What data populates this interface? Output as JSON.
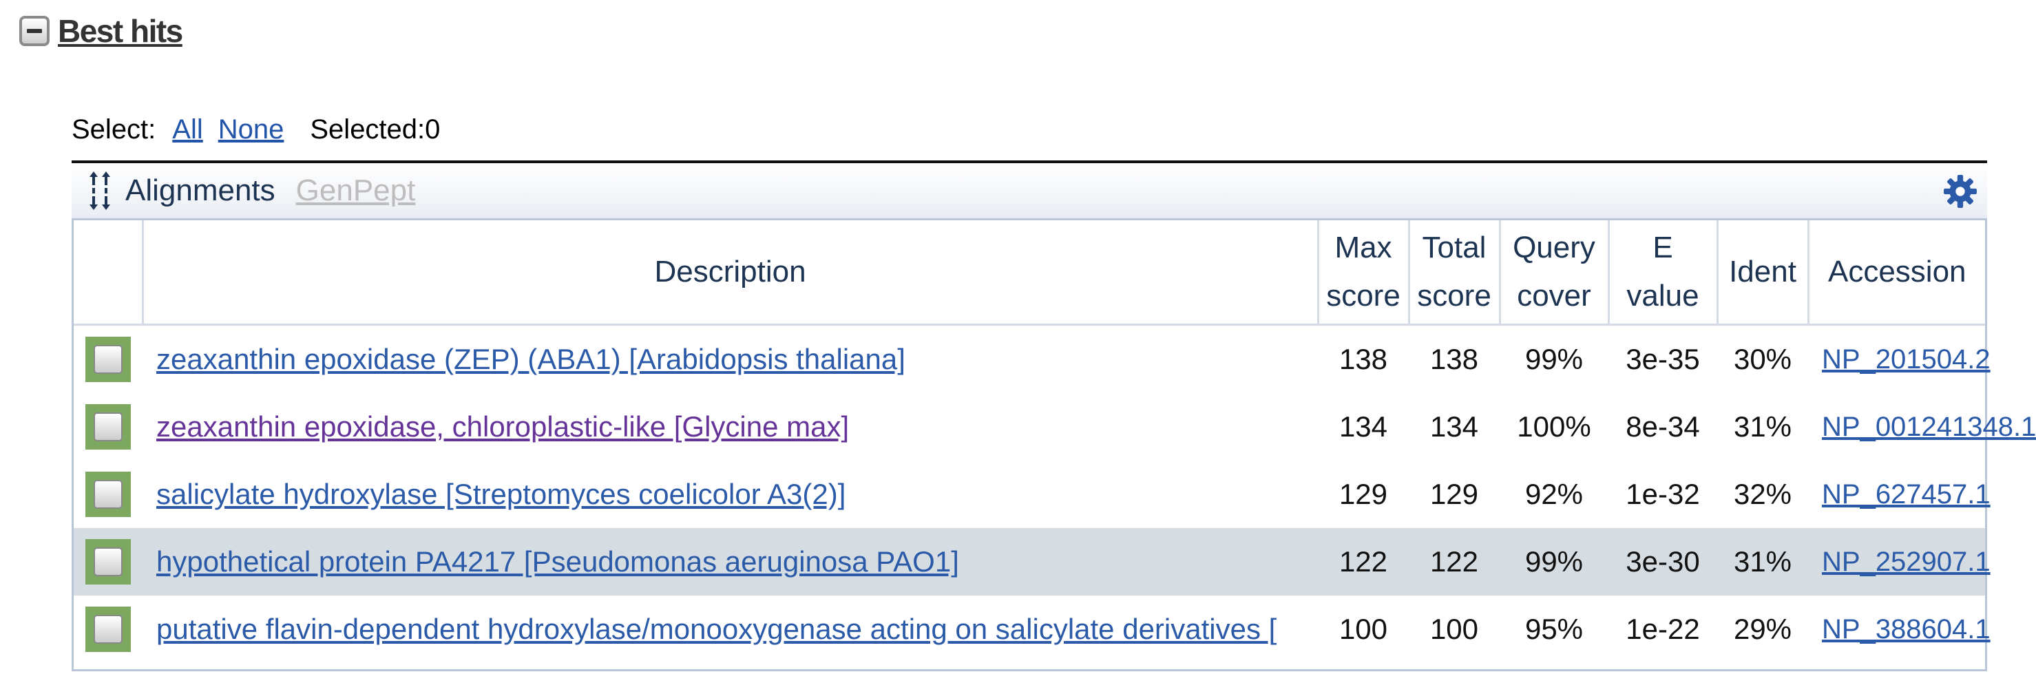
{
  "section": {
    "title": "Best hits",
    "toggle_icon": "collapse-minus-icon"
  },
  "select": {
    "label": "Select:",
    "all": "All",
    "none": "None",
    "selected_label": "Selected:0"
  },
  "toolbar": {
    "alignments": "Alignments",
    "genpept": "GenPept",
    "alignments_icon": "alignment-arrows-icon",
    "settings_icon": "gear-icon"
  },
  "table": {
    "headers": {
      "description": "Description",
      "max_score_1": "Max",
      "max_score_2": "score",
      "total_score_1": "Total",
      "total_score_2": "score",
      "query_cover_1": "Query",
      "query_cover_2": "cover",
      "evalue_1": "E",
      "evalue_2": "value",
      "ident": "Ident",
      "accession": "Accession"
    },
    "rows": [
      {
        "description": "zeaxanthin epoxidase (ZEP) (ABA1) [Arabidopsis thaliana]",
        "max_score": "138",
        "total_score": "138",
        "query_cover": "99%",
        "evalue": "3e-35",
        "ident": "30%",
        "accession": "NP_201504.2"
      },
      {
        "description": "zeaxanthin epoxidase, chloroplastic-like [Glycine max]",
        "max_score": "134",
        "total_score": "134",
        "query_cover": "100%",
        "evalue": "8e-34",
        "ident": "31%",
        "accession": "NP_001241348.1"
      },
      {
        "description": "salicylate hydroxylase [Streptomyces coelicolor A3(2)]",
        "max_score": "129",
        "total_score": "129",
        "query_cover": "92%",
        "evalue": "1e-32",
        "ident": "32%",
        "accession": "NP_627457.1"
      },
      {
        "description": "hypothetical protein PA4217 [Pseudomonas aeruginosa PAO1]",
        "max_score": "122",
        "total_score": "122",
        "query_cover": "99%",
        "evalue": "3e-30",
        "ident": "31%",
        "accession": "NP_252907.1"
      },
      {
        "description": "putative flavin-dependent hydroxylase/monooxygenase acting on salicylate derivatives [",
        "max_score": "100",
        "total_score": "100",
        "query_cover": "95%",
        "evalue": "1e-22",
        "ident": "29%",
        "accession": "NP_388604.1"
      }
    ]
  },
  "colors": {
    "link": "#2a5aa8",
    "visited_link": "#663399",
    "header_text": "#1c3352",
    "checkbox_frame": "#7ca85f",
    "highlight_row": "#d5dde3"
  }
}
